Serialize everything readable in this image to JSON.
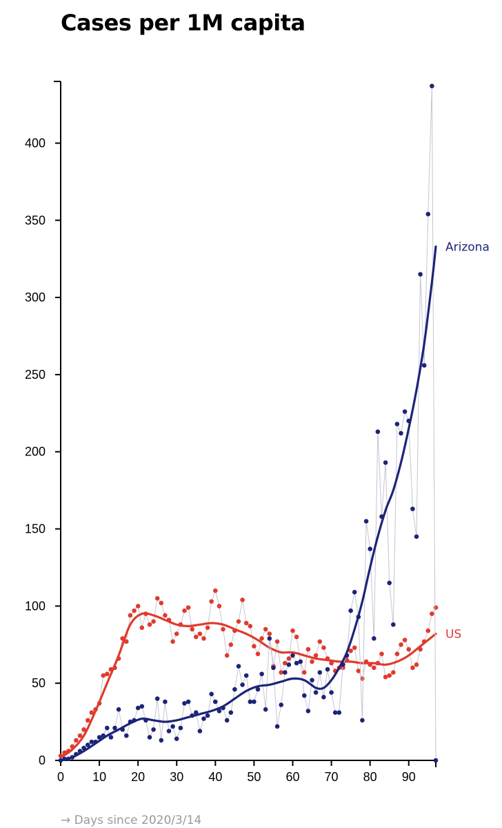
{
  "chart_data": {
    "type": "line",
    "title": "Cases per 1M capita",
    "xlabel": "→ Days since 2020/3/14",
    "ylabel": "",
    "xlim": [
      0,
      97
    ],
    "ylim": [
      0,
      440
    ],
    "x_ticks": [
      0,
      10,
      20,
      30,
      40,
      50,
      60,
      70,
      80,
      90
    ],
    "y_ticks": [
      0,
      50,
      100,
      150,
      200,
      250,
      300,
      350,
      400
    ],
    "grid": false,
    "series": [
      {
        "name": "US",
        "color": "#e03a2e",
        "label_x": 97,
        "label_y": 82,
        "points": [
          [
            0,
            3
          ],
          [
            1,
            5
          ],
          [
            2,
            6
          ],
          [
            3,
            9
          ],
          [
            4,
            13
          ],
          [
            5,
            16
          ],
          [
            6,
            20
          ],
          [
            7,
            26
          ],
          [
            8,
            31
          ],
          [
            9,
            33
          ],
          [
            10,
            37
          ],
          [
            11,
            55
          ],
          [
            12,
            56
          ],
          [
            13,
            59
          ],
          [
            14,
            60
          ],
          [
            15,
            66
          ],
          [
            16,
            79
          ],
          [
            17,
            77
          ],
          [
            18,
            94
          ],
          [
            19,
            97
          ],
          [
            20,
            100
          ],
          [
            21,
            86
          ],
          [
            22,
            95
          ],
          [
            23,
            88
          ],
          [
            24,
            90
          ],
          [
            25,
            105
          ],
          [
            26,
            102
          ],
          [
            27,
            94
          ],
          [
            28,
            91
          ],
          [
            29,
            77
          ],
          [
            30,
            82
          ],
          [
            31,
            88
          ],
          [
            32,
            97
          ],
          [
            33,
            99
          ],
          [
            34,
            85
          ],
          [
            35,
            80
          ],
          [
            36,
            82
          ],
          [
            37,
            79
          ],
          [
            38,
            86
          ],
          [
            39,
            103
          ],
          [
            40,
            110
          ],
          [
            41,
            100
          ],
          [
            42,
            85
          ],
          [
            43,
            68
          ],
          [
            44,
            75
          ],
          [
            45,
            84
          ],
          [
            46,
            90
          ],
          [
            47,
            104
          ],
          [
            48,
            89
          ],
          [
            49,
            87
          ],
          [
            50,
            74
          ],
          [
            51,
            69
          ],
          [
            52,
            79
          ],
          [
            53,
            85
          ],
          [
            54,
            82
          ],
          [
            55,
            61
          ],
          [
            56,
            77
          ],
          [
            57,
            57
          ],
          [
            58,
            63
          ],
          [
            59,
            66
          ],
          [
            60,
            84
          ],
          [
            61,
            80
          ],
          [
            62,
            64
          ],
          [
            63,
            57
          ],
          [
            64,
            72
          ],
          [
            65,
            64
          ],
          [
            66,
            68
          ],
          [
            67,
            77
          ],
          [
            68,
            73
          ],
          [
            69,
            66
          ],
          [
            70,
            63
          ],
          [
            71,
            58
          ],
          [
            72,
            60
          ],
          [
            73,
            60
          ],
          [
            74,
            65
          ],
          [
            75,
            71
          ],
          [
            76,
            73
          ],
          [
            77,
            58
          ],
          [
            78,
            53
          ],
          [
            79,
            64
          ],
          [
            80,
            62
          ],
          [
            81,
            60
          ],
          [
            82,
            63
          ],
          [
            83,
            69
          ],
          [
            84,
            54
          ],
          [
            85,
            55
          ],
          [
            86,
            57
          ],
          [
            87,
            69
          ],
          [
            88,
            75
          ],
          [
            89,
            78
          ],
          [
            90,
            72
          ],
          [
            91,
            60
          ],
          [
            92,
            62
          ],
          [
            93,
            72
          ],
          [
            94,
            77
          ],
          [
            95,
            84
          ],
          [
            96,
            95
          ],
          [
            97,
            99
          ]
        ],
        "trend": [
          [
            0,
            2
          ],
          [
            3,
            7
          ],
          [
            6,
            16
          ],
          [
            9,
            32
          ],
          [
            12,
            50
          ],
          [
            15,
            68
          ],
          [
            18,
            88
          ],
          [
            21,
            95
          ],
          [
            24,
            94
          ],
          [
            27,
            91
          ],
          [
            30,
            88
          ],
          [
            33,
            87
          ],
          [
            36,
            88
          ],
          [
            39,
            89
          ],
          [
            42,
            88
          ],
          [
            45,
            85
          ],
          [
            48,
            82
          ],
          [
            51,
            78
          ],
          [
            54,
            73
          ],
          [
            57,
            70
          ],
          [
            60,
            70
          ],
          [
            63,
            68
          ],
          [
            66,
            66
          ],
          [
            69,
            65
          ],
          [
            72,
            64
          ],
          [
            75,
            64
          ],
          [
            78,
            63
          ],
          [
            81,
            63
          ],
          [
            84,
            62
          ],
          [
            87,
            64
          ],
          [
            90,
            68
          ],
          [
            93,
            74
          ],
          [
            96,
            80
          ],
          [
            97,
            82
          ]
        ]
      },
      {
        "name": "Arizona",
        "color": "#1c2478",
        "label_x": 97,
        "label_y": 333,
        "points": [
          [
            0,
            0
          ],
          [
            1,
            1
          ],
          [
            2,
            1
          ],
          [
            3,
            2
          ],
          [
            4,
            4
          ],
          [
            5,
            6
          ],
          [
            6,
            8
          ],
          [
            7,
            10
          ],
          [
            8,
            12
          ],
          [
            9,
            12
          ],
          [
            10,
            15
          ],
          [
            11,
            16
          ],
          [
            12,
            21
          ],
          [
            13,
            15
          ],
          [
            14,
            21
          ],
          [
            15,
            33
          ],
          [
            16,
            20
          ],
          [
            17,
            16
          ],
          [
            18,
            25
          ],
          [
            19,
            26
          ],
          [
            20,
            34
          ],
          [
            21,
            35
          ],
          [
            22,
            26
          ],
          [
            23,
            15
          ],
          [
            24,
            20
          ],
          [
            25,
            40
          ],
          [
            26,
            13
          ],
          [
            27,
            38
          ],
          [
            28,
            19
          ],
          [
            29,
            22
          ],
          [
            30,
            14
          ],
          [
            31,
            21
          ],
          [
            32,
            37
          ],
          [
            33,
            38
          ],
          [
            34,
            29
          ],
          [
            35,
            31
          ],
          [
            36,
            19
          ],
          [
            37,
            27
          ],
          [
            38,
            29
          ],
          [
            39,
            43
          ],
          [
            40,
            38
          ],
          [
            41,
            32
          ],
          [
            42,
            34
          ],
          [
            43,
            26
          ],
          [
            44,
            31
          ],
          [
            45,
            46
          ],
          [
            46,
            61
          ],
          [
            47,
            49
          ],
          [
            48,
            55
          ],
          [
            49,
            38
          ],
          [
            50,
            38
          ],
          [
            51,
            46
          ],
          [
            52,
            56
          ],
          [
            53,
            33
          ],
          [
            54,
            79
          ],
          [
            55,
            60
          ],
          [
            56,
            22
          ],
          [
            57,
            36
          ],
          [
            58,
            57
          ],
          [
            59,
            62
          ],
          [
            60,
            68
          ],
          [
            61,
            63
          ],
          [
            62,
            64
          ],
          [
            63,
            42
          ],
          [
            64,
            32
          ],
          [
            65,
            52
          ],
          [
            66,
            44
          ],
          [
            67,
            57
          ],
          [
            68,
            41
          ],
          [
            69,
            59
          ],
          [
            70,
            44
          ],
          [
            71,
            31
          ],
          [
            72,
            31
          ],
          [
            73,
            62
          ],
          [
            74,
            68
          ],
          [
            75,
            97
          ],
          [
            76,
            109
          ],
          [
            77,
            93
          ],
          [
            78,
            26
          ],
          [
            79,
            155
          ],
          [
            80,
            137
          ],
          [
            81,
            79
          ],
          [
            82,
            213
          ],
          [
            83,
            158
          ],
          [
            84,
            193
          ],
          [
            85,
            115
          ],
          [
            86,
            88
          ],
          [
            87,
            218
          ],
          [
            88,
            212
          ],
          [
            89,
            226
          ],
          [
            90,
            220
          ],
          [
            91,
            163
          ],
          [
            92,
            145
          ],
          [
            93,
            315
          ],
          [
            94,
            256
          ],
          [
            95,
            354
          ],
          [
            96,
            437
          ],
          [
            97,
            0
          ]
        ],
        "trend": [
          [
            0,
            0
          ],
          [
            3,
            2
          ],
          [
            6,
            6
          ],
          [
            9,
            11
          ],
          [
            12,
            16
          ],
          [
            15,
            20
          ],
          [
            18,
            24
          ],
          [
            21,
            27
          ],
          [
            24,
            26
          ],
          [
            27,
            25
          ],
          [
            30,
            26
          ],
          [
            33,
            28
          ],
          [
            36,
            30
          ],
          [
            39,
            32
          ],
          [
            42,
            35
          ],
          [
            45,
            40
          ],
          [
            48,
            45
          ],
          [
            51,
            48
          ],
          [
            54,
            49
          ],
          [
            57,
            51
          ],
          [
            60,
            53
          ],
          [
            63,
            52
          ],
          [
            66,
            47
          ],
          [
            68,
            47
          ],
          [
            70,
            52
          ],
          [
            72,
            60
          ],
          [
            74,
            70
          ],
          [
            76,
            85
          ],
          [
            78,
            103
          ],
          [
            80,
            125
          ],
          [
            82,
            145
          ],
          [
            84,
            162
          ],
          [
            86,
            175
          ],
          [
            88,
            193
          ],
          [
            90,
            215
          ],
          [
            92,
            240
          ],
          [
            94,
            270
          ],
          [
            96,
            310
          ],
          [
            97,
            333
          ]
        ]
      }
    ]
  }
}
